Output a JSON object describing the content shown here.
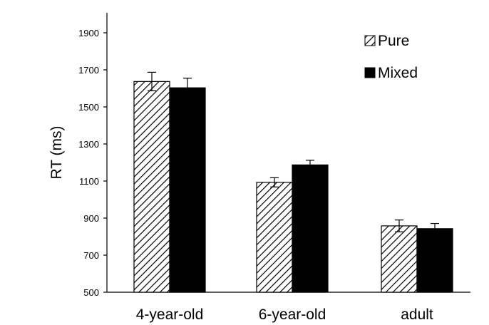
{
  "chart_data": {
    "type": "bar",
    "title": "",
    "xlabel": "",
    "ylabel": "RT (ms)",
    "ylim": [
      500,
      2000
    ],
    "yticks": [
      500,
      700,
      900,
      1100,
      1300,
      1500,
      1700,
      1900
    ],
    "categories": [
      "4-year-old",
      "6-year-old",
      "adult"
    ],
    "series": [
      {
        "name": "Pure",
        "fill": "hatched",
        "values": [
          1637,
          1093,
          858
        ],
        "errors": [
          50,
          25,
          32
        ]
      },
      {
        "name": "Mixed",
        "fill": "#000000",
        "values": [
          1603,
          1187,
          843
        ],
        "errors": [
          52,
          25,
          28
        ]
      }
    ],
    "legend": "top-right",
    "grid": false,
    "error_bars": true
  }
}
